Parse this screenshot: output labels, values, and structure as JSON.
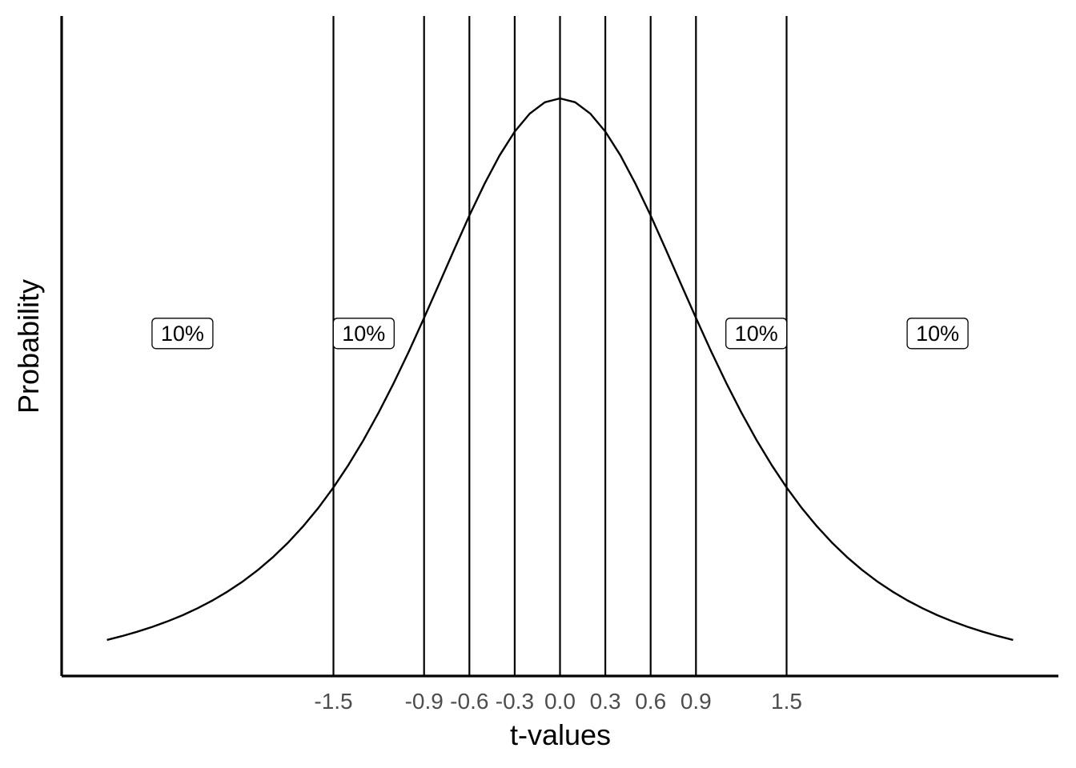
{
  "chart_data": {
    "type": "line",
    "title": "",
    "xlabel": "t-values",
    "ylabel": "Probability",
    "xlim": [
      -3.3,
      3.3
    ],
    "ylim": [
      0,
      0.42
    ],
    "grid": false,
    "legend": "none",
    "show_y_ticks": false,
    "curve": {
      "distribution": "Student t",
      "x_range": [
        -3.0,
        3.0
      ],
      "step": 0.1
    },
    "vlines": [
      -1.5,
      -0.9,
      -0.6,
      -0.3,
      0.0,
      0.3,
      0.6,
      0.9,
      1.5
    ],
    "x_ticks": [
      {
        "value": -1.5,
        "label": "-1.5"
      },
      {
        "value": -0.9,
        "label": "-0.9"
      },
      {
        "value": -0.6,
        "label": "-0.6"
      },
      {
        "value": -0.3,
        "label": "-0.3"
      },
      {
        "value": 0.0,
        "label": "0.0"
      },
      {
        "value": 0.3,
        "label": "0.3"
      },
      {
        "value": 0.6,
        "label": "0.6"
      },
      {
        "value": 0.9,
        "label": "0.9"
      },
      {
        "value": 1.5,
        "label": "1.5"
      }
    ],
    "region_labels": [
      {
        "x": -2.5,
        "y": 0.218,
        "text": "10%"
      },
      {
        "x": -1.3,
        "y": 0.218,
        "text": "10%"
      },
      {
        "x": 1.3,
        "y": 0.218,
        "text": "10%"
      },
      {
        "x": 2.5,
        "y": 0.218,
        "text": "10%"
      }
    ],
    "colors": {
      "line": "#000000",
      "tick_text": "#4d4d4d",
      "label_box_border": "#000000",
      "label_box_fill": "#ffffff"
    }
  }
}
